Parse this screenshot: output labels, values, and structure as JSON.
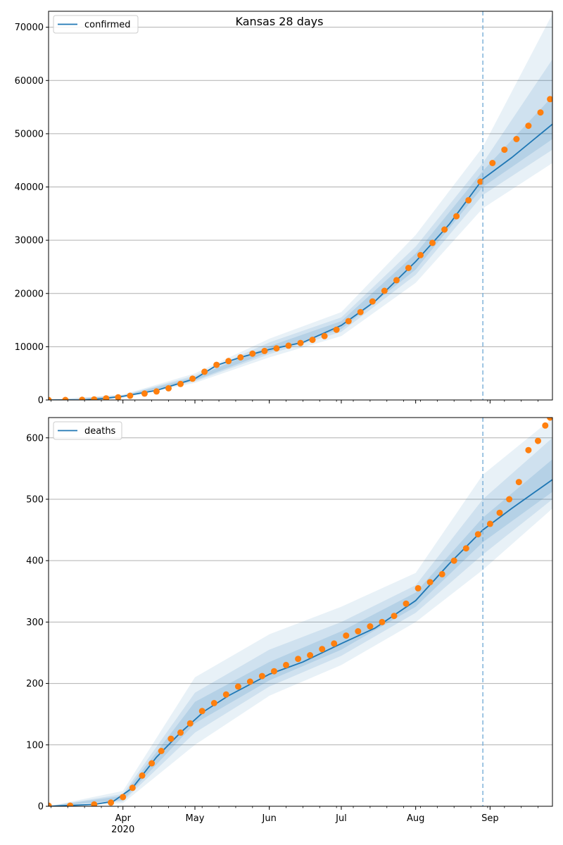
{
  "figure": {
    "title": "Kansas 28 days"
  },
  "colors": {
    "fit_line": "#1f77b4",
    "observed_points": "#ff7f0e",
    "band": "#1f77b4",
    "cutoff_line": "#7fb2d9",
    "grid": "#b0b0b0"
  },
  "chart_data": [
    {
      "type": "line",
      "title": "Kansas 28 days",
      "xlabel": "",
      "ylabel": "",
      "legend": {
        "position": "top-left",
        "entries": [
          "confirmed"
        ]
      },
      "grid": {
        "y": true,
        "x": false
      },
      "x_axis": {
        "type": "date",
        "range": [
          "2020-03-01",
          "2020-09-27"
        ],
        "tick_labels": [
          "",
          "",
          "",
          "",
          "",
          "",
          ""
        ],
        "year_label": ""
      },
      "y_axis": {
        "range": [
          0,
          73000
        ],
        "ticks": [
          0,
          10000,
          20000,
          30000,
          40000,
          50000,
          60000,
          70000
        ],
        "tick_labels": [
          "0",
          "10000",
          "20000",
          "30000",
          "40000",
          "50000",
          "60000",
          "70000"
        ]
      },
      "forecast_start": "2020-08-29",
      "series": [
        {
          "name": "confirmed",
          "kind": "fit",
          "points": [
            [
              "2020-03-01",
              0
            ],
            [
              "2020-03-15",
              10
            ],
            [
              "2020-03-25",
              300
            ],
            [
              "2020-04-01",
              700
            ],
            [
              "2020-04-15",
              1800
            ],
            [
              "2020-05-01",
              4000
            ],
            [
              "2020-05-10",
              6500
            ],
            [
              "2020-05-20",
              8000
            ],
            [
              "2020-06-01",
              9500
            ],
            [
              "2020-06-15",
              10800
            ],
            [
              "2020-07-01",
              14000
            ],
            [
              "2020-07-15",
              18500
            ],
            [
              "2020-08-01",
              26000
            ],
            [
              "2020-08-15",
              33000
            ],
            [
              "2020-08-29",
              41500
            ],
            [
              "2020-09-10",
              45500
            ],
            [
              "2020-09-27",
              51800
            ]
          ]
        },
        {
          "name": "",
          "kind": "observed",
          "points": [
            [
              "2020-03-01",
              0
            ],
            [
              "2020-03-08",
              0
            ],
            [
              "2020-03-15",
              20
            ],
            [
              "2020-03-20",
              100
            ],
            [
              "2020-03-25",
              300
            ],
            [
              "2020-03-30",
              500
            ],
            [
              "2020-04-04",
              800
            ],
            [
              "2020-04-10",
              1200
            ],
            [
              "2020-04-15",
              1600
            ],
            [
              "2020-04-20",
              2200
            ],
            [
              "2020-04-25",
              3000
            ],
            [
              "2020-04-30",
              4000
            ],
            [
              "2020-05-05",
              5300
            ],
            [
              "2020-05-10",
              6600
            ],
            [
              "2020-05-15",
              7300
            ],
            [
              "2020-05-20",
              8000
            ],
            [
              "2020-05-25",
              8700
            ],
            [
              "2020-05-30",
              9200
            ],
            [
              "2020-06-04",
              9700
            ],
            [
              "2020-06-09",
              10200
            ],
            [
              "2020-06-14",
              10700
            ],
            [
              "2020-06-19",
              11300
            ],
            [
              "2020-06-24",
              12000
            ],
            [
              "2020-06-29",
              13200
            ],
            [
              "2020-07-04",
              14800
            ],
            [
              "2020-07-09",
              16500
            ],
            [
              "2020-07-14",
              18500
            ],
            [
              "2020-07-19",
              20500
            ],
            [
              "2020-07-24",
              22500
            ],
            [
              "2020-07-29",
              24800
            ],
            [
              "2020-08-03",
              27200
            ],
            [
              "2020-08-08",
              29500
            ],
            [
              "2020-08-13",
              32000
            ],
            [
              "2020-08-18",
              34500
            ],
            [
              "2020-08-23",
              37500
            ],
            [
              "2020-08-28",
              41000
            ],
            [
              "2020-09-02",
              44500
            ],
            [
              "2020-09-07",
              47000
            ],
            [
              "2020-09-12",
              49000
            ],
            [
              "2020-09-17",
              51500
            ],
            [
              "2020-09-22",
              54000
            ],
            [
              "2020-09-26",
              56500
            ]
          ]
        }
      ],
      "uncertainty_bands": [
        {
          "level": "outer",
          "lower": [
            [
              "2020-03-01",
              0
            ],
            [
              "2020-04-01",
              400
            ],
            [
              "2020-05-01",
              3200
            ],
            [
              "2020-06-01",
              8000
            ],
            [
              "2020-07-01",
              12000
            ],
            [
              "2020-08-01",
              22000
            ],
            [
              "2020-08-29",
              36000
            ],
            [
              "2020-09-27",
              44500
            ]
          ],
          "upper": [
            [
              "2020-03-01",
              0
            ],
            [
              "2020-04-01",
              1000
            ],
            [
              "2020-05-01",
              5000
            ],
            [
              "2020-06-01",
              11500
            ],
            [
              "2020-07-01",
              16500
            ],
            [
              "2020-08-01",
              31000
            ],
            [
              "2020-08-29",
              47500
            ],
            [
              "2020-09-27",
              72500
            ]
          ]
        },
        {
          "level": "middle",
          "lower": [
            [
              "2020-03-01",
              0
            ],
            [
              "2020-04-01",
              500
            ],
            [
              "2020-05-01",
              3500
            ],
            [
              "2020-06-01",
              8600
            ],
            [
              "2020-07-01",
              12800
            ],
            [
              "2020-08-01",
              23500
            ],
            [
              "2020-08-29",
              38500
            ],
            [
              "2020-09-27",
              47000
            ]
          ],
          "upper": [
            [
              "2020-03-01",
              0
            ],
            [
              "2020-04-01",
              900
            ],
            [
              "2020-05-01",
              4600
            ],
            [
              "2020-06-01",
              10800
            ],
            [
              "2020-07-01",
              15500
            ],
            [
              "2020-08-01",
              28800
            ],
            [
              "2020-08-29",
              44500
            ],
            [
              "2020-09-27",
              64000
            ]
          ]
        },
        {
          "level": "inner",
          "lower": [
            [
              "2020-03-01",
              0
            ],
            [
              "2020-04-01",
              600
            ],
            [
              "2020-05-01",
              3700
            ],
            [
              "2020-06-01",
              9000
            ],
            [
              "2020-07-01",
              13300
            ],
            [
              "2020-08-01",
              24500
            ],
            [
              "2020-08-29",
              40000
            ],
            [
              "2020-09-27",
              49000
            ]
          ],
          "upper": [
            [
              "2020-03-01",
              0
            ],
            [
              "2020-04-01",
              800
            ],
            [
              "2020-05-01",
              4300
            ],
            [
              "2020-06-01",
              10100
            ],
            [
              "2020-07-01",
              14800
            ],
            [
              "2020-08-01",
              27500
            ],
            [
              "2020-08-29",
              43000
            ],
            [
              "2020-09-27",
              57000
            ]
          ]
        }
      ]
    },
    {
      "type": "line",
      "title": "",
      "xlabel": "",
      "ylabel": "",
      "legend": {
        "position": "top-left",
        "entries": [
          "deaths"
        ]
      },
      "grid": {
        "y": true,
        "x": false
      },
      "x_axis": {
        "type": "date",
        "range": [
          "2020-03-01",
          "2020-09-27"
        ],
        "tick_labels": [
          "Apr",
          "May",
          "Jun",
          "Jul",
          "Aug",
          "Sep"
        ],
        "tick_dates": [
          "2020-04-01",
          "2020-05-01",
          "2020-06-01",
          "2020-07-01",
          "2020-08-01",
          "2020-09-01"
        ],
        "year_label": "2020"
      },
      "y_axis": {
        "range": [
          0,
          633
        ],
        "ticks": [
          0,
          100,
          200,
          300,
          400,
          500,
          600
        ],
        "tick_labels": [
          "0",
          "100",
          "200",
          "300",
          "400",
          "500",
          "600"
        ]
      },
      "forecast_start": "2020-08-29",
      "series": [
        {
          "name": "deaths",
          "kind": "fit",
          "points": [
            [
              "2020-03-01",
              0
            ],
            [
              "2020-03-20",
              3
            ],
            [
              "2020-03-28",
              8
            ],
            [
              "2020-04-05",
              30
            ],
            [
              "2020-04-15",
              80
            ],
            [
              "2020-04-25",
              120
            ],
            [
              "2020-05-05",
              155
            ],
            [
              "2020-05-15",
              180
            ],
            [
              "2020-06-01",
              215
            ],
            [
              "2020-06-15",
              235
            ],
            [
              "2020-07-01",
              265
            ],
            [
              "2020-07-15",
              290
            ],
            [
              "2020-08-01",
              335
            ],
            [
              "2020-08-15",
              395
            ],
            [
              "2020-08-29",
              450
            ],
            [
              "2020-09-10",
              485
            ],
            [
              "2020-09-27",
              532
            ]
          ]
        },
        {
          "name": "",
          "kind": "observed",
          "points": [
            [
              "2020-03-01",
              1
            ],
            [
              "2020-03-10",
              1
            ],
            [
              "2020-03-20",
              3
            ],
            [
              "2020-03-27",
              6
            ],
            [
              "2020-04-01",
              15
            ],
            [
              "2020-04-05",
              30
            ],
            [
              "2020-04-09",
              50
            ],
            [
              "2020-04-13",
              70
            ],
            [
              "2020-04-17",
              90
            ],
            [
              "2020-04-21",
              110
            ],
            [
              "2020-04-25",
              120
            ],
            [
              "2020-04-29",
              135
            ],
            [
              "2020-05-04",
              155
            ],
            [
              "2020-05-09",
              168
            ],
            [
              "2020-05-14",
              182
            ],
            [
              "2020-05-19",
              195
            ],
            [
              "2020-05-24",
              203
            ],
            [
              "2020-05-29",
              212
            ],
            [
              "2020-06-03",
              220
            ],
            [
              "2020-06-08",
              230
            ],
            [
              "2020-06-13",
              240
            ],
            [
              "2020-06-18",
              246
            ],
            [
              "2020-06-23",
              256
            ],
            [
              "2020-06-28",
              265
            ],
            [
              "2020-07-03",
              278
            ],
            [
              "2020-07-08",
              285
            ],
            [
              "2020-07-13",
              293
            ],
            [
              "2020-07-18",
              300
            ],
            [
              "2020-07-23",
              310
            ],
            [
              "2020-07-28",
              330
            ],
            [
              "2020-08-02",
              355
            ],
            [
              "2020-08-07",
              365
            ],
            [
              "2020-08-12",
              378
            ],
            [
              "2020-08-17",
              400
            ],
            [
              "2020-08-22",
              420
            ],
            [
              "2020-08-27",
              443
            ],
            [
              "2020-09-01",
              460
            ],
            [
              "2020-09-05",
              478
            ],
            [
              "2020-09-09",
              500
            ],
            [
              "2020-09-13",
              528
            ],
            [
              "2020-09-17",
              580
            ],
            [
              "2020-09-21",
              595
            ],
            [
              "2020-09-24",
              620
            ],
            [
              "2020-09-26",
              633
            ]
          ]
        }
      ],
      "uncertainty_bands": [
        {
          "level": "outer",
          "lower": [
            [
              "2020-03-01",
              0
            ],
            [
              "2020-04-01",
              5
            ],
            [
              "2020-05-01",
              100
            ],
            [
              "2020-06-01",
              180
            ],
            [
              "2020-07-01",
              230
            ],
            [
              "2020-08-01",
              300
            ],
            [
              "2020-08-29",
              385
            ],
            [
              "2020-09-27",
              485
            ]
          ],
          "upper": [
            [
              "2020-03-01",
              0
            ],
            [
              "2020-04-01",
              25
            ],
            [
              "2020-05-01",
              210
            ],
            [
              "2020-06-01",
              280
            ],
            [
              "2020-07-01",
              325
            ],
            [
              "2020-08-01",
              380
            ],
            [
              "2020-08-29",
              540
            ],
            [
              "2020-09-27",
              632
            ]
          ]
        },
        {
          "level": "middle",
          "lower": [
            [
              "2020-03-01",
              0
            ],
            [
              "2020-04-01",
              8
            ],
            [
              "2020-05-01",
              120
            ],
            [
              "2020-06-01",
              195
            ],
            [
              "2020-07-01",
              245
            ],
            [
              "2020-08-01",
              315
            ],
            [
              "2020-08-29",
              410
            ],
            [
              "2020-09-27",
              500
            ]
          ],
          "upper": [
            [
              "2020-03-01",
              0
            ],
            [
              "2020-04-01",
              20
            ],
            [
              "2020-05-01",
              185
            ],
            [
              "2020-06-01",
              255
            ],
            [
              "2020-07-01",
              300
            ],
            [
              "2020-08-01",
              360
            ],
            [
              "2020-08-29",
              500
            ],
            [
              "2020-09-27",
              600
            ]
          ]
        },
        {
          "level": "inner",
          "lower": [
            [
              "2020-03-01",
              0
            ],
            [
              "2020-04-01",
              10
            ],
            [
              "2020-05-01",
              135
            ],
            [
              "2020-06-01",
              205
            ],
            [
              "2020-07-01",
              255
            ],
            [
              "2020-08-01",
              325
            ],
            [
              "2020-08-29",
              430
            ],
            [
              "2020-09-27",
              512
            ]
          ],
          "upper": [
            [
              "2020-03-01",
              0
            ],
            [
              "2020-04-01",
              17
            ],
            [
              "2020-05-01",
              170
            ],
            [
              "2020-06-01",
              235
            ],
            [
              "2020-07-01",
              285
            ],
            [
              "2020-08-01",
              348
            ],
            [
              "2020-08-29",
              470
            ],
            [
              "2020-09-27",
              565
            ]
          ]
        }
      ]
    }
  ]
}
